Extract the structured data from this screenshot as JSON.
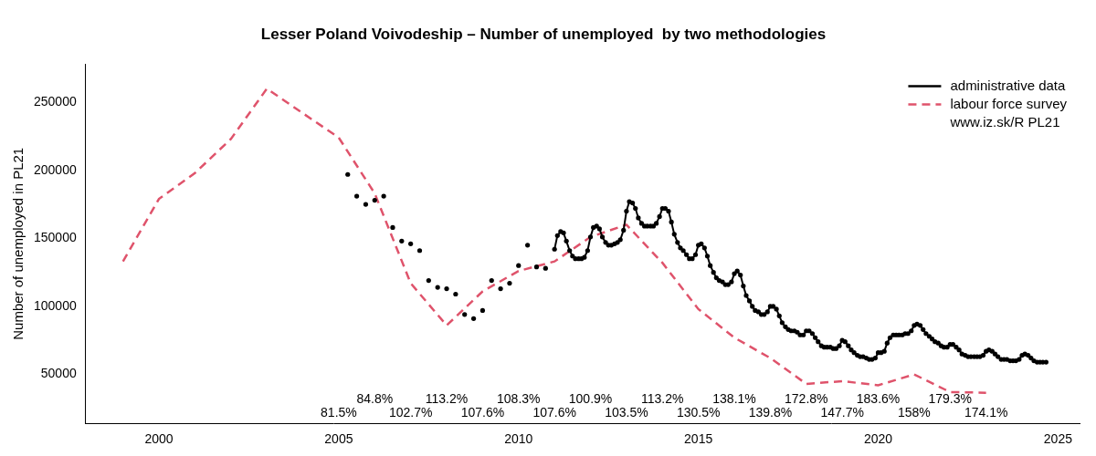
{
  "chart_data": {
    "type": "line",
    "title": "Lesser Poland Voivodeship – Number of unemployed  by two methodologies",
    "y_label": "Number of unemployed in PL21",
    "xlim": [
      1997.96,
      2025.6
    ],
    "xticks": [
      2000,
      2005,
      2010,
      2015,
      2020,
      2025
    ],
    "ylim": [
      14000,
      278000
    ],
    "yticks": [
      50000,
      100000,
      150000,
      200000,
      250000
    ],
    "grid": false,
    "legend": "top-right",
    "legend_note": "www.iz.sk/R PL21",
    "series": [
      {
        "name": "administrative data",
        "color": "#000000",
        "marker": "circle",
        "line_style": "solid",
        "x": [
          2005.25,
          2005.33,
          2005.5,
          2005.58,
          2005.75,
          2005.83,
          2006.0,
          2006.08,
          2006.25,
          2006.33,
          2006.5,
          2006.58,
          2006.75,
          2006.83,
          2007.0,
          2007.08,
          2007.25,
          2007.33,
          2007.5,
          2007.58,
          2007.75,
          2007.83,
          2008.0,
          2008.08,
          2008.25,
          2008.33,
          2008.5,
          2008.58,
          2008.75,
          2008.83,
          2009.0,
          2009.08,
          2009.25,
          2009.33,
          2009.5,
          2009.58,
          2009.75,
          2009.83,
          2010.0,
          2010.08,
          2010.25,
          2010.33,
          2010.5,
          2010.58,
          2010.75,
          2010.83,
          2011.0,
          2011.08,
          2011.17,
          2011.25,
          2011.33,
          2011.42,
          2011.5,
          2011.58,
          2011.67,
          2011.75,
          2011.83,
          2011.92,
          2012.0,
          2012.08,
          2012.17,
          2012.25,
          2012.33,
          2012.42,
          2012.5,
          2012.58,
          2012.67,
          2012.75,
          2012.83,
          2012.92,
          2013.0,
          2013.08,
          2013.17,
          2013.25,
          2013.33,
          2013.42,
          2013.5,
          2013.58,
          2013.67,
          2013.75,
          2013.83,
          2013.92,
          2014.0,
          2014.08,
          2014.17,
          2014.25,
          2014.33,
          2014.42,
          2014.5,
          2014.58,
          2014.67,
          2014.75,
          2014.83,
          2014.92,
          2015.0,
          2015.08,
          2015.17,
          2015.25,
          2015.33,
          2015.42,
          2015.5,
          2015.58,
          2015.67,
          2015.75,
          2015.83,
          2015.92,
          2016.0,
          2016.08,
          2016.17,
          2016.25,
          2016.33,
          2016.42,
          2016.5,
          2016.58,
          2016.67,
          2016.75,
          2016.83,
          2016.92,
          2017.0,
          2017.08,
          2017.17,
          2017.25,
          2017.33,
          2017.42,
          2017.5,
          2017.58,
          2017.67,
          2017.75,
          2017.83,
          2017.92,
          2018.0,
          2018.08,
          2018.17,
          2018.25,
          2018.33,
          2018.42,
          2018.5,
          2018.58,
          2018.67,
          2018.75,
          2018.83,
          2018.92,
          2019.0,
          2019.08,
          2019.17,
          2019.25,
          2019.33,
          2019.42,
          2019.5,
          2019.58,
          2019.67,
          2019.75,
          2019.83,
          2019.92,
          2020.0,
          2020.08,
          2020.17,
          2020.25,
          2020.33,
          2020.42,
          2020.5,
          2020.58,
          2020.67,
          2020.75,
          2020.83,
          2020.92,
          2021.0,
          2021.08,
          2021.17,
          2021.25,
          2021.33,
          2021.42,
          2021.5,
          2021.58,
          2021.67,
          2021.75,
          2021.83,
          2021.92,
          2022.0,
          2022.08,
          2022.17,
          2022.25,
          2022.33,
          2022.42,
          2022.5,
          2022.58,
          2022.67,
          2022.75,
          2022.83,
          2022.92,
          2023.0,
          2023.08,
          2023.17,
          2023.25,
          2023.33,
          2023.42,
          2023.5,
          2023.58,
          2023.67,
          2023.75,
          2023.83,
          2023.92,
          2024.0,
          2024.08,
          2024.17,
          2024.25,
          2024.33,
          2024.42,
          2024.5,
          2024.58,
          2024.67
        ],
        "values": [
          197000,
          null,
          181000,
          null,
          175000,
          null,
          178000,
          null,
          181000,
          null,
          158000,
          null,
          148000,
          null,
          146000,
          null,
          141000,
          null,
          119000,
          null,
          114000,
          null,
          113000,
          null,
          109000,
          null,
          94000,
          null,
          91000,
          null,
          97000,
          null,
          119000,
          null,
          113000,
          null,
          117000,
          null,
          130000,
          null,
          145000,
          null,
          129000,
          null,
          128000,
          null,
          142000,
          152000,
          155000,
          154000,
          148000,
          141000,
          137000,
          135000,
          135000,
          135000,
          136000,
          141000,
          151000,
          158000,
          159000,
          157000,
          151000,
          147000,
          145000,
          145000,
          146000,
          147000,
          149000,
          156000,
          170000,
          177000,
          176000,
          172000,
          165000,
          161000,
          159000,
          159000,
          159000,
          159000,
          161000,
          166000,
          172000,
          172000,
          170000,
          162000,
          153000,
          147000,
          143000,
          141000,
          138000,
          135000,
          135000,
          138000,
          145000,
          146000,
          143000,
          137000,
          130000,
          125000,
          121000,
          119000,
          118000,
          116000,
          116000,
          118000,
          124000,
          126000,
          123000,
          115000,
          108000,
          104000,
          100000,
          97000,
          96000,
          94000,
          94000,
          96000,
          100000,
          100000,
          98000,
          93000,
          88000,
          85000,
          83000,
          82000,
          82000,
          81000,
          79000,
          79000,
          82000,
          82000,
          80000,
          77000,
          74000,
          71000,
          70000,
          70000,
          70000,
          69000,
          69000,
          71000,
          75000,
          74000,
          71000,
          68000,
          66000,
          64000,
          63000,
          63000,
          62000,
          61000,
          61000,
          62000,
          66000,
          66000,
          67000,
          73000,
          77000,
          79000,
          79000,
          79000,
          79000,
          80000,
          80000,
          82000,
          86000,
          87000,
          86000,
          83000,
          80000,
          78000,
          76000,
          74000,
          73000,
          71000,
          70000,
          70000,
          72000,
          72000,
          70000,
          68000,
          65000,
          64000,
          63000,
          63000,
          63000,
          63000,
          63000,
          64000,
          67000,
          68000,
          67000,
          65000,
          63000,
          61000,
          61000,
          61000,
          60000,
          60000,
          60000,
          61000,
          64000,
          65000,
          64000,
          62000,
          60000,
          59000,
          59000,
          59000,
          59000
        ]
      },
      {
        "name": "labour force survey",
        "color": "#DF536B",
        "marker": "none",
        "line_style": "dashed",
        "x": [
          1999,
          2000,
          2001,
          2002,
          2003,
          2004,
          2005,
          2006,
          2007,
          2008,
          2009,
          2010,
          2011,
          2012,
          2013,
          2014,
          2015,
          2016,
          2017,
          2018,
          2019,
          2020,
          2021,
          2022,
          2023
        ],
        "values": [
          133000,
          179000,
          198000,
          223000,
          260000,
          242000,
          224000,
          183000,
          117000,
          86000,
          111000,
          126000,
          133000,
          151000,
          160000,
          132000,
          98000,
          77000,
          62000,
          43000,
          45000,
          42000,
          50000,
          37000,
          36500
        ]
      }
    ],
    "annotations": [
      {
        "x": 2005,
        "y": 21500,
        "text": "81.5%"
      },
      {
        "x": 2006,
        "y": 31500,
        "text": "84.8%"
      },
      {
        "x": 2007,
        "y": 21500,
        "text": "102.7%"
      },
      {
        "x": 2008,
        "y": 31500,
        "text": "113.2%"
      },
      {
        "x": 2009,
        "y": 21500,
        "text": "107.6%"
      },
      {
        "x": 2010,
        "y": 31500,
        "text": "108.3%"
      },
      {
        "x": 2011,
        "y": 21500,
        "text": "107.6%"
      },
      {
        "x": 2012,
        "y": 31500,
        "text": "100.9%"
      },
      {
        "x": 2013,
        "y": 21500,
        "text": "103.5%"
      },
      {
        "x": 2014,
        "y": 31500,
        "text": "113.2%"
      },
      {
        "x": 2015,
        "y": 21500,
        "text": "130.5%"
      },
      {
        "x": 2016,
        "y": 31500,
        "text": "138.1%"
      },
      {
        "x": 2017,
        "y": 21500,
        "text": "139.8%"
      },
      {
        "x": 2018,
        "y": 31500,
        "text": "172.8%"
      },
      {
        "x": 2019,
        "y": 21500,
        "text": "147.7%"
      },
      {
        "x": 2020,
        "y": 31500,
        "text": "183.6%"
      },
      {
        "x": 2021,
        "y": 21500,
        "text": "158%"
      },
      {
        "x": 2022,
        "y": 31500,
        "text": "179.3%"
      },
      {
        "x": 2023,
        "y": 21500,
        "text": "174.1%"
      }
    ]
  }
}
